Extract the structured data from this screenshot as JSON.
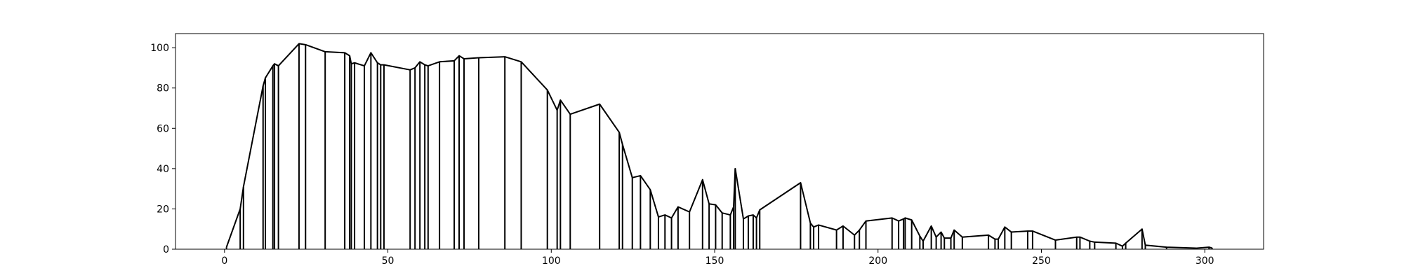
{
  "chart_data": {
    "type": "line",
    "title": "",
    "xlabel": "",
    "ylabel": "",
    "xlim": [
      -15,
      318
    ],
    "ylim": [
      0,
      107
    ],
    "x_ticks": [
      0,
      50,
      100,
      150,
      200,
      250,
      300
    ],
    "y_ticks": [
      0,
      20,
      40,
      60,
      80,
      100
    ],
    "grid": false,
    "colors": {
      "line": "#000000",
      "axes": "#000000",
      "background": "#ffffff"
    },
    "style_note": "each point also drawn as a vertical line from 0 up to its value",
    "series": [
      {
        "x": [
          0.6,
          4.8,
          5.8,
          11.8,
          12.5,
          14.8,
          15.3,
          16.5,
          22.8,
          24.8,
          30.8,
          36.8,
          38.3,
          38.8,
          39.8,
          42.8,
          44.8,
          46.8,
          47.8,
          48.8,
          56.8,
          58.3,
          59.8,
          61.3,
          62.3,
          65.8,
          70.3,
          71.8,
          73.3,
          77.8,
          85.8,
          90.8,
          98.8,
          101.8,
          102.8,
          105.8,
          114.8,
          120.8,
          121.8,
          124.8,
          127.3,
          130.3,
          132.8,
          134.8,
          136.8,
          138.8,
          142.3,
          146.3,
          148.3,
          150.3,
          152.3,
          154.8,
          155.8,
          156.3,
          158.8,
          160.3,
          161.8,
          162.8,
          163.8,
          176.3,
          179.3,
          180.3,
          181.8,
          187.3,
          189.3,
          192.8,
          194.3,
          196.3,
          204.3,
          206.3,
          207.8,
          208.3,
          210.3,
          212.8,
          213.8,
          216.3,
          217.8,
          219.3,
          220.3,
          222.3,
          223.3,
          225.8,
          233.8,
          235.8,
          236.8,
          238.8,
          240.8,
          245.8,
          247.3,
          254.3,
          260.8,
          261.8,
          264.8,
          266.3,
          272.8,
          274.8,
          275.8,
          280.8,
          281.8,
          288.3,
          297.3,
          301.3,
          302.3
        ],
        "values": [
          1,
          20,
          31,
          81,
          85,
          91,
          92,
          91,
          102,
          101.5,
          98,
          97.5,
          96,
          92,
          92.5,
          91,
          97.5,
          92.5,
          91.5,
          91.5,
          89,
          90,
          93,
          91.5,
          91,
          93,
          93.5,
          96,
          94.5,
          95,
          95.5,
          93,
          79,
          69,
          74,
          67,
          72,
          58,
          52,
          35.5,
          36.5,
          29.5,
          16,
          17,
          15.5,
          21,
          18.5,
          34.5,
          22.5,
          22,
          18,
          17,
          21,
          40,
          15,
          16.5,
          17,
          15.5,
          19.5,
          33,
          13,
          11,
          12,
          9.5,
          11.5,
          7,
          9.5,
          14,
          15.5,
          14,
          15,
          15.5,
          14.5,
          6.5,
          4,
          11.5,
          6,
          8.5,
          5.5,
          5.5,
          9.5,
          6,
          7,
          5,
          5,
          11,
          8.5,
          9,
          9,
          4.5,
          6,
          6,
          4,
          3.5,
          3,
          1.5,
          3,
          10,
          2,
          1,
          0.5,
          1,
          0.5
        ]
      }
    ]
  }
}
